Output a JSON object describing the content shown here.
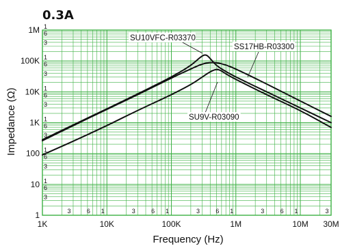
{
  "chart_data": {
    "type": "line",
    "title": "0.3A",
    "xlabel": "Frequency (Hz)",
    "ylabel": "Impedance (Ω)",
    "xscale": "log",
    "yscale": "log",
    "xlim": [
      1000,
      30000000
    ],
    "ylim": [
      1,
      1000000
    ],
    "grid": true,
    "x_ticks": [
      {
        "value": 1000,
        "label": "1K"
      },
      {
        "value": 10000,
        "label": "10K"
      },
      {
        "value": 100000,
        "label": "100K"
      },
      {
        "value": 1000000,
        "label": "1M"
      },
      {
        "value": 10000000,
        "label": "10M"
      },
      {
        "value": 30000000,
        "label": "30M"
      }
    ],
    "x_minor_ticks": [
      {
        "value": 3000,
        "label": "3"
      },
      {
        "value": 6000,
        "label": "6"
      },
      {
        "value": 10000,
        "label": "1"
      },
      {
        "value": 30000,
        "label": "3"
      },
      {
        "value": 60000,
        "label": "6"
      },
      {
        "value": 100000,
        "label": "1"
      },
      {
        "value": 300000,
        "label": "3"
      },
      {
        "value": 600000,
        "label": "6"
      },
      {
        "value": 1000000,
        "label": "1"
      },
      {
        "value": 3000000,
        "label": "3"
      },
      {
        "value": 6000000,
        "label": "6"
      },
      {
        "value": 10000000,
        "label": "1"
      },
      {
        "value": 30000000,
        "label": "3"
      }
    ],
    "y_ticks": [
      {
        "value": 1,
        "label": "1"
      },
      {
        "value": 10,
        "label": "10"
      },
      {
        "value": 100,
        "label": "100"
      },
      {
        "value": 1000,
        "label": "1K"
      },
      {
        "value": 10000,
        "label": "10K"
      },
      {
        "value": 100000,
        "label": "100K"
      },
      {
        "value": 1000000,
        "label": "1M"
      }
    ],
    "y_minor_ticks": [
      {
        "value": 3,
        "label": "3"
      },
      {
        "value": 6,
        "label": "6"
      },
      {
        "value": 10,
        "label": "1"
      },
      {
        "value": 30,
        "label": "3"
      },
      {
        "value": 60,
        "label": "6"
      },
      {
        "value": 100,
        "label": "1"
      },
      {
        "value": 300,
        "label": "3"
      },
      {
        "value": 600,
        "label": "6"
      },
      {
        "value": 1000,
        "label": "1"
      },
      {
        "value": 3000,
        "label": "3"
      },
      {
        "value": 6000,
        "label": "6"
      },
      {
        "value": 10000,
        "label": "1"
      },
      {
        "value": 30000,
        "label": "3"
      },
      {
        "value": 60000,
        "label": "6"
      },
      {
        "value": 100000,
        "label": "1"
      },
      {
        "value": 300000,
        "label": "3"
      },
      {
        "value": 600000,
        "label": "6"
      },
      {
        "value": 1000000,
        "label": "1"
      }
    ],
    "series": [
      {
        "name": "SU10VFC-R03370",
        "x": [
          1000,
          3000,
          10000,
          30000,
          100000,
          200000,
          300000,
          350000,
          400000,
          500000,
          700000,
          1000000,
          3000000,
          10000000,
          30000000
        ],
        "y": [
          280,
          850,
          2800,
          8500,
          30000,
          70000,
          150000,
          160000,
          120000,
          70000,
          45000,
          30000,
          10000,
          3000,
          1000
        ]
      },
      {
        "name": "SS17HB-R03300",
        "x": [
          1000,
          3000,
          10000,
          30000,
          100000,
          200000,
          300000,
          400000,
          500000,
          700000,
          1000000,
          3000000,
          10000000,
          30000000
        ],
        "y": [
          260,
          800,
          2700,
          8000,
          28000,
          55000,
          80000,
          90000,
          88000,
          75000,
          55000,
          18000,
          5000,
          1600
        ]
      },
      {
        "name": "SU9V-R03090",
        "x": [
          1000,
          3000,
          10000,
          30000,
          100000,
          200000,
          300000,
          400000,
          500000,
          600000,
          700000,
          1000000,
          3000000,
          10000000,
          30000000
        ],
        "y": [
          90,
          250,
          800,
          2500,
          8000,
          17000,
          30000,
          45000,
          55000,
          48000,
          38000,
          25000,
          8000,
          2500,
          700
        ]
      }
    ],
    "annotations": [
      {
        "text": "SU10VFC-R03370",
        "series": "SU10VFC-R03370"
      },
      {
        "text": "SS17HB-R03300",
        "series": "SS17HB-R03300"
      },
      {
        "text": "SU9V-R03090",
        "series": "SU9V-R03090"
      }
    ],
    "colors": {
      "grid": "#3cb043",
      "curve": "#111111",
      "text": "#111111"
    }
  }
}
